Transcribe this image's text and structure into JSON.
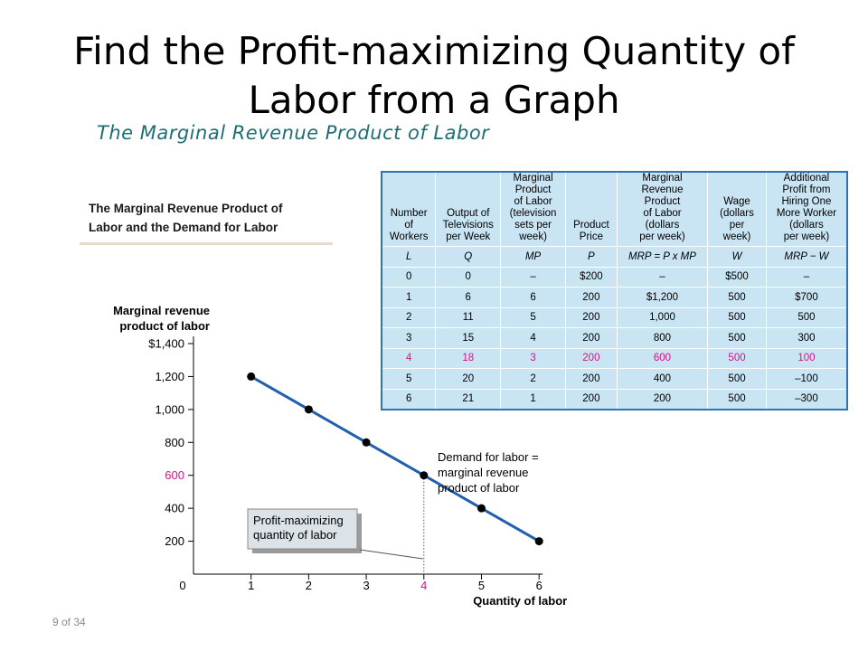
{
  "slide": {
    "title": "Find the Profit-maximizing Quantity of Labor from a Graph",
    "subtitle": "The Marginal Revenue Product of Labor",
    "caption_line1": "The Marginal Revenue Product of",
    "caption_line2": "Labor and the Demand for Labor",
    "slide_number": "9 of 34"
  },
  "table": {
    "headers": [
      [
        "Number",
        "of",
        "Workers"
      ],
      [
        "Output of",
        "Televisions",
        "per Week"
      ],
      [
        "Marginal",
        "Product",
        "of Labor",
        "(television",
        "sets per",
        "week)"
      ],
      [
        "Product",
        "Price"
      ],
      [
        "Marginal",
        "Revenue",
        "Product",
        "of Labor",
        "(dollars",
        "per week)"
      ],
      [
        "Wage",
        "(dollars",
        "per",
        "week)"
      ],
      [
        "Additional",
        "Profit from",
        "Hiring One",
        "More Worker",
        "(dollars",
        "per week)"
      ]
    ],
    "symbols": [
      "L",
      "Q",
      "MP",
      "P",
      "MRP = P x MP",
      "W",
      "MRP − W"
    ],
    "rows": [
      [
        "0",
        "0",
        "–",
        "$200",
        "–",
        "$500",
        "–"
      ],
      [
        "1",
        "6",
        "6",
        "200",
        "$1,200",
        "500",
        "$700"
      ],
      [
        "2",
        "11",
        "5",
        "200",
        "1,000",
        "500",
        "500"
      ],
      [
        "3",
        "15",
        "4",
        "200",
        "800",
        "500",
        "300"
      ],
      [
        "4",
        "18",
        "3",
        "200",
        "600",
        "500",
        "100"
      ],
      [
        "5",
        "20",
        "2",
        "200",
        "400",
        "500",
        "–100"
      ],
      [
        "6",
        "21",
        "1",
        "200",
        "200",
        "500",
        "–300"
      ]
    ],
    "highlight_row_index": 4,
    "highlight_color": "#d6138a",
    "background_color": "#c9e4f2",
    "border_color": "#2e74b5"
  },
  "chart_data": {
    "type": "line",
    "ylabel": "Marginal revenue product of labor",
    "xlabel": "Quantity of labor",
    "x": [
      1,
      2,
      3,
      4,
      5,
      6
    ],
    "series": [
      {
        "values": [
          1200,
          1000,
          800,
          600,
          400,
          200
        ]
      }
    ],
    "x_ticks": [
      "0",
      "1",
      "2",
      "3",
      "4",
      "5",
      "6"
    ],
    "y_ticks": [
      "200",
      "400",
      "600",
      "800",
      "1,000",
      "1,200",
      "$1,400"
    ],
    "xlim": [
      0,
      6
    ],
    "ylim": [
      0,
      1400
    ],
    "grid": false,
    "highlight": {
      "x": 4,
      "y": 600,
      "color": "#d6138a"
    },
    "line_color": "#1f5fae",
    "annotations": {
      "demand": [
        "Demand for labor =",
        "marginal revenue",
        "product of labor"
      ],
      "callout": [
        "Profit-maximizing",
        "quantity of labor"
      ]
    }
  }
}
